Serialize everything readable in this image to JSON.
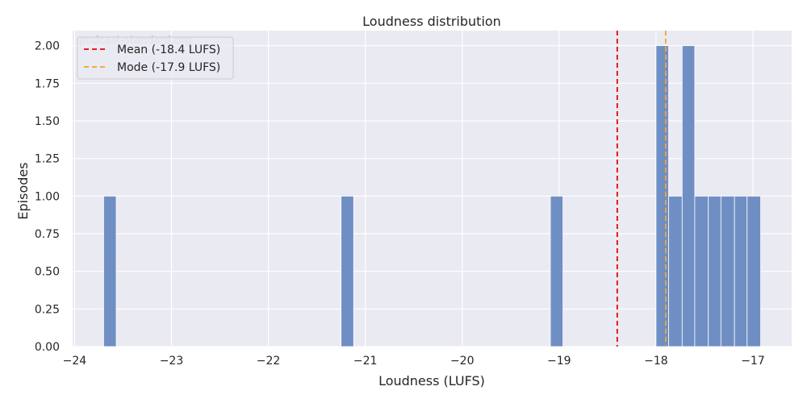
{
  "chart_data": {
    "type": "bar",
    "title": "Loudness distribution",
    "xlabel": "Loudness (LUFS)",
    "ylabel": "Episodes",
    "watermark": "podcast-standard.org",
    "xlim": [
      -24.02,
      -16.6
    ],
    "ylim": [
      0,
      2.1
    ],
    "xticks": [
      -24,
      -23,
      -22,
      -21,
      -20,
      -19,
      -18,
      -17
    ],
    "xtick_labels": [
      "−24",
      "−23",
      "−22",
      "−21",
      "−20",
      "−19",
      "−18",
      "−17"
    ],
    "yticks": [
      0,
      0.25,
      0.5,
      0.75,
      1.0,
      1.25,
      1.5,
      1.75,
      2.0
    ],
    "ytick_labels": [
      "0.00",
      "0.25",
      "0.50",
      "0.75",
      "1.00",
      "1.25",
      "1.50",
      "1.75",
      "2.00"
    ],
    "grid": true,
    "legend_position": "top-left",
    "bars": [
      {
        "x0": -23.7,
        "x1": -23.57,
        "count": 1
      },
      {
        "x0": -21.25,
        "x1": -21.12,
        "count": 1
      },
      {
        "x0": -19.09,
        "x1": -18.96,
        "count": 1
      },
      {
        "x0": -18.0,
        "x1": -17.87,
        "count": 2
      },
      {
        "x0": -17.87,
        "x1": -17.73,
        "count": 1
      },
      {
        "x0": -17.73,
        "x1": -17.6,
        "count": 2
      },
      {
        "x0": -17.6,
        "x1": -17.46,
        "count": 1
      },
      {
        "x0": -17.46,
        "x1": -17.33,
        "count": 1
      },
      {
        "x0": -17.33,
        "x1": -17.19,
        "count": 1
      },
      {
        "x0": -17.19,
        "x1": -17.06,
        "count": 1
      },
      {
        "x0": -17.06,
        "x1": -16.92,
        "count": 1
      }
    ],
    "reference_lines": [
      {
        "name": "Mean (-18.4 LUFS)",
        "x": -18.4,
        "color": "#e8000b",
        "dash": "6,4"
      },
      {
        "name": "Mode (-17.9 LUFS)",
        "x": -17.9,
        "color": "#f5a623",
        "dash": "6,4"
      }
    ],
    "colors": {
      "bar": "#6f8fc4",
      "plot_bg": "#eaeaf2",
      "grid": "#ffffff"
    }
  }
}
